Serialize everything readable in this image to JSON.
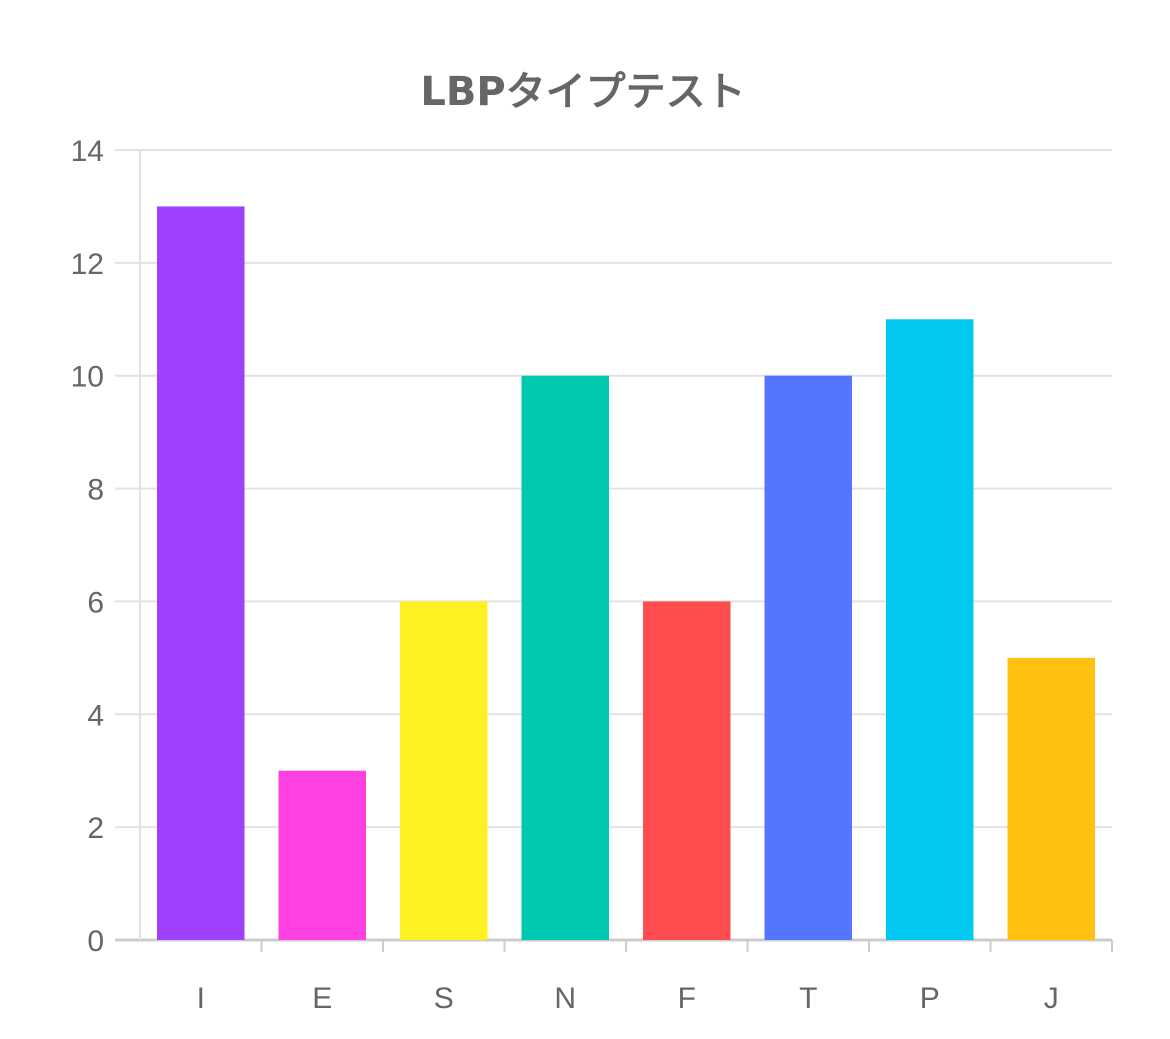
{
  "chart_data": {
    "type": "bar",
    "title": "LBPタイプテスト",
    "xlabel": "",
    "ylabel": "",
    "categories": [
      "I",
      "E",
      "S",
      "N",
      "F",
      "T",
      "P",
      "J"
    ],
    "values": [
      13,
      3,
      6,
      10,
      6,
      10,
      11,
      5
    ],
    "colors": [
      "#a040ff",
      "#ff40e0",
      "#fff022",
      "#00c8b0",
      "#ff4d4f",
      "#5575ff",
      "#00c8f0",
      "#ffc010"
    ],
    "ylim": [
      0,
      14
    ],
    "yticks": [
      "0",
      "2",
      "4",
      "6",
      "8",
      "10",
      "12",
      "14"
    ],
    "grid": true,
    "legend": "none"
  }
}
